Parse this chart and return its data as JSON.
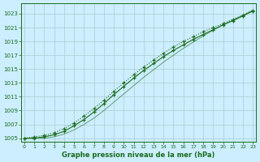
{
  "title": "Graphe pression niveau de la mer (hPa)",
  "xlabel": "Graphe pression niveau de la mer (hPa)",
  "bg_color": "#cceeff",
  "plot_bg_color": "#cceeff",
  "line_color": "#1a6b1a",
  "grid_color": "#aacccc",
  "text_color": "#1a6b1a",
  "xlim": [
    -0.3,
    23.3
  ],
  "ylim": [
    1004.5,
    1024.5
  ],
  "yticks": [
    1005,
    1007,
    1009,
    1011,
    1013,
    1015,
    1017,
    1019,
    1021,
    1023
  ],
  "xticks": [
    0,
    1,
    2,
    3,
    4,
    5,
    6,
    7,
    8,
    9,
    10,
    11,
    12,
    13,
    14,
    15,
    16,
    17,
    18,
    19,
    20,
    21,
    22,
    23
  ],
  "series_upper": [
    1005.0,
    1005.2,
    1005.4,
    1005.8,
    1006.4,
    1007.2,
    1008.2,
    1009.3,
    1010.5,
    1011.8,
    1013.0,
    1014.2,
    1015.3,
    1016.3,
    1017.3,
    1018.2,
    1019.0,
    1019.7,
    1020.4,
    1021.0,
    1021.6,
    1022.2,
    1022.8,
    1023.5
  ],
  "series_mid": [
    1005.0,
    1005.0,
    1005.2,
    1005.5,
    1006.0,
    1006.8,
    1007.7,
    1008.8,
    1010.0,
    1011.3,
    1012.5,
    1013.7,
    1014.8,
    1015.8,
    1016.8,
    1017.7,
    1018.5,
    1019.3,
    1020.0,
    1020.7,
    1021.4,
    1022.0,
    1022.7,
    1023.4
  ],
  "series_lower": [
    1005.0,
    1005.0,
    1005.0,
    1005.2,
    1005.6,
    1006.2,
    1007.0,
    1007.9,
    1009.0,
    1010.2,
    1011.4,
    1012.6,
    1013.8,
    1014.9,
    1016.0,
    1017.0,
    1018.0,
    1018.9,
    1019.8,
    1020.6,
    1021.4,
    1022.1,
    1022.8,
    1023.5
  ]
}
